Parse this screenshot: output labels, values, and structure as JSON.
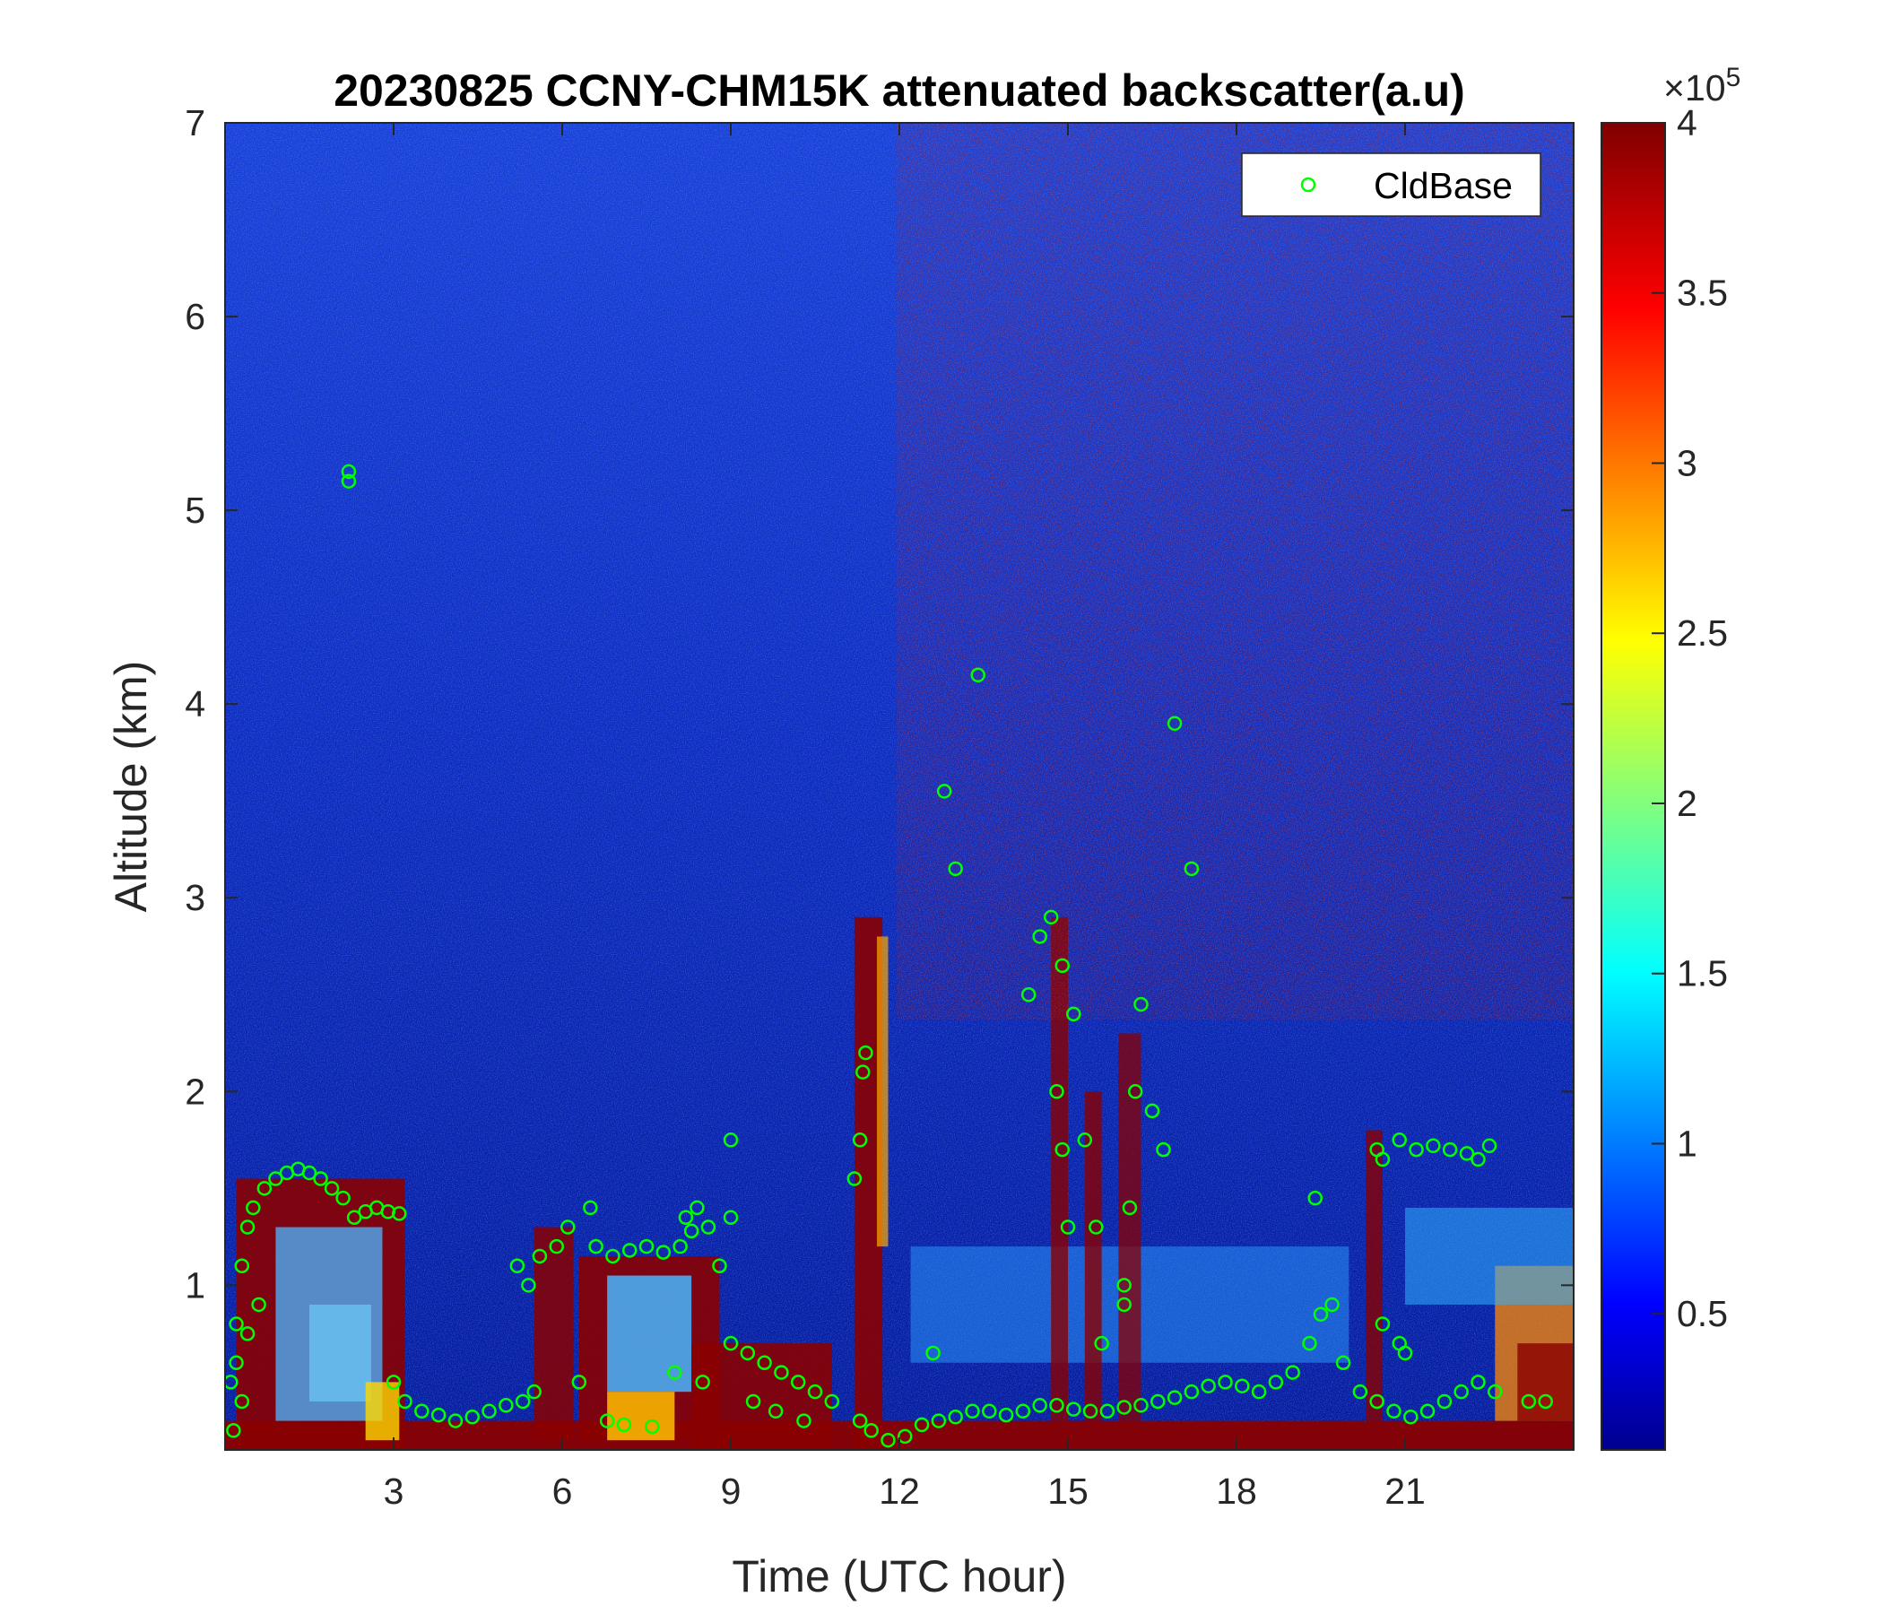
{
  "chart_data": {
    "type": "heatmap",
    "title": "20230825 CCNY-CHM15K attenuated backscatter(a.u)",
    "xlabel": "Time (UTC hour)",
    "ylabel": "Altitude (km)",
    "xlim": [
      0,
      24
    ],
    "ylim": [
      0.15,
      7
    ],
    "x_ticks": [
      3,
      6,
      9,
      12,
      15,
      18,
      21
    ],
    "x_tick_labels": [
      "3",
      "6",
      "9",
      "12",
      "15",
      "18",
      "21"
    ],
    "y_ticks": [
      1,
      2,
      3,
      4,
      5,
      6,
      7
    ],
    "y_tick_labels": [
      "1",
      "2",
      "3",
      "4",
      "5",
      "6",
      "7"
    ],
    "colormap": "jet",
    "colorbar": {
      "min": 0.1,
      "max": 4,
      "ticks": [
        0.5,
        1,
        1.5,
        2,
        2.5,
        3,
        3.5,
        4
      ],
      "tick_labels": [
        "0.5",
        "1",
        "1.5",
        "2",
        "2.5",
        "3",
        "3.5",
        "4"
      ],
      "exponent_label": "×10",
      "exponent_power": "5"
    },
    "legend": {
      "position": "top-right",
      "entries": [
        {
          "name": "CldBase",
          "marker": "circle",
          "color": "#00ff00"
        }
      ]
    },
    "series": [
      {
        "name": "CldBase",
        "marker": "circle",
        "color": "#00ff00",
        "points": [
          {
            "x": 0.1,
            "y": 0.5
          },
          {
            "x": 0.2,
            "y": 0.8
          },
          {
            "x": 0.3,
            "y": 1.1
          },
          {
            "x": 0.4,
            "y": 1.3
          },
          {
            "x": 0.5,
            "y": 1.4
          },
          {
            "x": 0.7,
            "y": 1.5
          },
          {
            "x": 0.9,
            "y": 1.55
          },
          {
            "x": 1.1,
            "y": 1.58
          },
          {
            "x": 1.3,
            "y": 1.6
          },
          {
            "x": 1.5,
            "y": 1.58
          },
          {
            "x": 1.7,
            "y": 1.55
          },
          {
            "x": 1.9,
            "y": 1.5
          },
          {
            "x": 2.1,
            "y": 1.45
          },
          {
            "x": 2.3,
            "y": 1.35
          },
          {
            "x": 2.5,
            "y": 1.38
          },
          {
            "x": 2.7,
            "y": 1.4
          },
          {
            "x": 2.9,
            "y": 1.38
          },
          {
            "x": 3.1,
            "y": 1.37
          },
          {
            "x": 0.2,
            "y": 0.6
          },
          {
            "x": 0.4,
            "y": 0.75
          },
          {
            "x": 0.6,
            "y": 0.9
          },
          {
            "x": 0.3,
            "y": 0.4
          },
          {
            "x": 0.15,
            "y": 0.25
          },
          {
            "x": 2.2,
            "y": 5.2
          },
          {
            "x": 2.2,
            "y": 5.15
          },
          {
            "x": 3.0,
            "y": 0.5
          },
          {
            "x": 3.2,
            "y": 0.4
          },
          {
            "x": 3.5,
            "y": 0.35
          },
          {
            "x": 3.8,
            "y": 0.33
          },
          {
            "x": 4.1,
            "y": 0.3
          },
          {
            "x": 4.4,
            "y": 0.32
          },
          {
            "x": 4.7,
            "y": 0.35
          },
          {
            "x": 5.0,
            "y": 0.38
          },
          {
            "x": 5.3,
            "y": 0.4
          },
          {
            "x": 5.5,
            "y": 0.45
          },
          {
            "x": 5.2,
            "y": 1.1
          },
          {
            "x": 5.4,
            "y": 1.0
          },
          {
            "x": 5.6,
            "y": 1.15
          },
          {
            "x": 5.9,
            "y": 1.2
          },
          {
            "x": 6.1,
            "y": 1.3
          },
          {
            "x": 6.3,
            "y": 0.5
          },
          {
            "x": 6.5,
            "y": 1.4
          },
          {
            "x": 6.6,
            "y": 1.2
          },
          {
            "x": 6.9,
            "y": 1.15
          },
          {
            "x": 7.2,
            "y": 1.18
          },
          {
            "x": 7.5,
            "y": 1.2
          },
          {
            "x": 7.8,
            "y": 1.17
          },
          {
            "x": 8.1,
            "y": 1.2
          },
          {
            "x": 8.3,
            "y": 1.28
          },
          {
            "x": 8.6,
            "y": 1.3
          },
          {
            "x": 8.8,
            "y": 1.1
          },
          {
            "x": 8.2,
            "y": 1.35
          },
          {
            "x": 8.4,
            "y": 1.4
          },
          {
            "x": 9.0,
            "y": 1.75
          },
          {
            "x": 9.0,
            "y": 1.35
          },
          {
            "x": 6.8,
            "y": 0.3
          },
          {
            "x": 7.1,
            "y": 0.28
          },
          {
            "x": 7.6,
            "y": 0.27
          },
          {
            "x": 8.0,
            "y": 0.55
          },
          {
            "x": 8.5,
            "y": 0.5
          },
          {
            "x": 9.0,
            "y": 0.7
          },
          {
            "x": 9.3,
            "y": 0.65
          },
          {
            "x": 9.6,
            "y": 0.6
          },
          {
            "x": 9.9,
            "y": 0.55
          },
          {
            "x": 10.2,
            "y": 0.5
          },
          {
            "x": 10.5,
            "y": 0.45
          },
          {
            "x": 10.8,
            "y": 0.4
          },
          {
            "x": 9.4,
            "y": 0.4
          },
          {
            "x": 9.8,
            "y": 0.35
          },
          {
            "x": 10.3,
            "y": 0.3
          },
          {
            "x": 11.2,
            "y": 1.55
          },
          {
            "x": 11.3,
            "y": 1.75
          },
          {
            "x": 11.35,
            "y": 2.1
          },
          {
            "x": 11.4,
            "y": 2.2
          },
          {
            "x": 11.3,
            "y": 0.3
          },
          {
            "x": 11.5,
            "y": 0.25
          },
          {
            "x": 11.8,
            "y": 0.2
          },
          {
            "x": 12.1,
            "y": 0.22
          },
          {
            "x": 12.4,
            "y": 0.28
          },
          {
            "x": 12.7,
            "y": 0.3
          },
          {
            "x": 13.0,
            "y": 0.32
          },
          {
            "x": 13.3,
            "y": 0.35
          },
          {
            "x": 13.6,
            "y": 0.35
          },
          {
            "x": 13.9,
            "y": 0.33
          },
          {
            "x": 14.2,
            "y": 0.35
          },
          {
            "x": 14.5,
            "y": 0.38
          },
          {
            "x": 14.8,
            "y": 0.38
          },
          {
            "x": 15.1,
            "y": 0.36
          },
          {
            "x": 15.4,
            "y": 0.35
          },
          {
            "x": 15.7,
            "y": 0.35
          },
          {
            "x": 16.0,
            "y": 0.37
          },
          {
            "x": 16.3,
            "y": 0.38
          },
          {
            "x": 16.6,
            "y": 0.4
          },
          {
            "x": 16.9,
            "y": 0.42
          },
          {
            "x": 17.2,
            "y": 0.45
          },
          {
            "x": 17.5,
            "y": 0.48
          },
          {
            "x": 17.8,
            "y": 0.5
          },
          {
            "x": 18.1,
            "y": 0.48
          },
          {
            "x": 18.4,
            "y": 0.45
          },
          {
            "x": 18.7,
            "y": 0.5
          },
          {
            "x": 19.0,
            "y": 0.55
          },
          {
            "x": 19.3,
            "y": 0.7
          },
          {
            "x": 19.5,
            "y": 0.85
          },
          {
            "x": 19.7,
            "y": 0.9
          },
          {
            "x": 19.9,
            "y": 0.6
          },
          {
            "x": 20.2,
            "y": 0.45
          },
          {
            "x": 20.5,
            "y": 0.4
          },
          {
            "x": 20.8,
            "y": 0.35
          },
          {
            "x": 21.1,
            "y": 0.32
          },
          {
            "x": 21.4,
            "y": 0.35
          },
          {
            "x": 21.7,
            "y": 0.4
          },
          {
            "x": 22.0,
            "y": 0.45
          },
          {
            "x": 22.3,
            "y": 0.5
          },
          {
            "x": 22.6,
            "y": 0.45
          },
          {
            "x": 23.2,
            "y": 0.4
          },
          {
            "x": 23.5,
            "y": 0.4
          },
          {
            "x": 12.6,
            "y": 0.65
          },
          {
            "x": 13.4,
            "y": 4.15
          },
          {
            "x": 12.8,
            "y": 3.55
          },
          {
            "x": 13.0,
            "y": 3.15
          },
          {
            "x": 14.3,
            "y": 2.5
          },
          {
            "x": 14.5,
            "y": 2.8
          },
          {
            "x": 14.7,
            "y": 2.9
          },
          {
            "x": 14.9,
            "y": 2.65
          },
          {
            "x": 14.8,
            "y": 2.0
          },
          {
            "x": 14.9,
            "y": 1.7
          },
          {
            "x": 15.0,
            "y": 1.3
          },
          {
            "x": 15.1,
            "y": 2.4
          },
          {
            "x": 15.3,
            "y": 1.75
          },
          {
            "x": 15.5,
            "y": 1.3
          },
          {
            "x": 15.6,
            "y": 0.7
          },
          {
            "x": 16.1,
            "y": 1.4
          },
          {
            "x": 16.2,
            "y": 2.0
          },
          {
            "x": 16.3,
            "y": 2.45
          },
          {
            "x": 16.5,
            "y": 1.9
          },
          {
            "x": 16.7,
            "y": 1.7
          },
          {
            "x": 16.9,
            "y": 3.9
          },
          {
            "x": 17.2,
            "y": 3.15
          },
          {
            "x": 16.0,
            "y": 0.9
          },
          {
            "x": 16.0,
            "y": 1.0
          },
          {
            "x": 19.4,
            "y": 1.45
          },
          {
            "x": 20.5,
            "y": 1.7
          },
          {
            "x": 20.6,
            "y": 1.65
          },
          {
            "x": 20.9,
            "y": 1.75
          },
          {
            "x": 21.2,
            "y": 1.7
          },
          {
            "x": 21.5,
            "y": 1.72
          },
          {
            "x": 21.8,
            "y": 1.7
          },
          {
            "x": 22.1,
            "y": 1.68
          },
          {
            "x": 22.3,
            "y": 1.65
          },
          {
            "x": 22.5,
            "y": 1.72
          },
          {
            "x": 20.6,
            "y": 0.8
          },
          {
            "x": 20.9,
            "y": 0.7
          },
          {
            "x": 21.0,
            "y": 0.65
          }
        ]
      }
    ]
  }
}
